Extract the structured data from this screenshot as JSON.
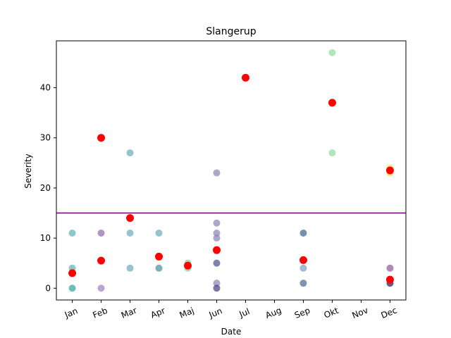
{
  "chart_data": {
    "type": "scatter",
    "title": "Slangerup",
    "xlabel": "Date",
    "ylabel": "Severity",
    "categories": [
      "Jan",
      "Feb",
      "Mar",
      "Apr",
      "Maj",
      "Jun",
      "Jul",
      "Aug",
      "Sep",
      "Okt",
      "Nov",
      "Dec"
    ],
    "ylim": [
      -2.35,
      49.35
    ],
    "yticks": [
      0,
      10,
      20,
      30,
      40
    ],
    "grid": false,
    "threshold": {
      "value": 15,
      "color": "#6a006a"
    },
    "series": [
      {
        "kind": "observations",
        "points": [
          {
            "x": "Jan",
            "y": 11,
            "color": "#5fb1b1"
          },
          {
            "x": "Jan",
            "y": 4,
            "color": "#5fb1b1"
          },
          {
            "x": "Jan",
            "y": 0,
            "color": "#2aa59a"
          },
          {
            "x": "Feb",
            "y": 11,
            "color": "#8b6aa6"
          },
          {
            "x": "Feb",
            "y": 0,
            "color": "#9d7fbc"
          },
          {
            "x": "Mar",
            "y": 27,
            "color": "#6aaab8"
          },
          {
            "x": "Mar",
            "y": 11,
            "color": "#6aaab8"
          },
          {
            "x": "Mar",
            "y": 4,
            "color": "#6aaab8"
          },
          {
            "x": "Apr",
            "y": 11,
            "color": "#6aaab8"
          },
          {
            "x": "Apr",
            "y": 4,
            "color": "#4a8f98"
          },
          {
            "x": "Maj",
            "y": 5,
            "color": "#7fcf8f"
          },
          {
            "x": "Maj",
            "y": 4,
            "color": "#7fcf8f"
          },
          {
            "x": "Jun",
            "y": 23,
            "color": "#8a82b8"
          },
          {
            "x": "Jun",
            "y": 13,
            "color": "#8a82b8"
          },
          {
            "x": "Jun",
            "y": 11,
            "color": "#8a82b8"
          },
          {
            "x": "Jun",
            "y": 10,
            "color": "#8a82b8"
          },
          {
            "x": "Jun",
            "y": 5,
            "color": "#4b4d8f"
          },
          {
            "x": "Jun",
            "y": 1,
            "color": "#8a82b8"
          },
          {
            "x": "Jun",
            "y": 0,
            "color": "#4b3d80"
          },
          {
            "x": "Sep",
            "y": 11,
            "color": "#3e5f8a"
          },
          {
            "x": "Sep",
            "y": 4,
            "color": "#7c9ac0"
          },
          {
            "x": "Sep",
            "y": 1,
            "color": "#4a6790"
          },
          {
            "x": "Okt",
            "y": 47,
            "color": "#8fdc9a"
          },
          {
            "x": "Okt",
            "y": 27,
            "color": "#8fdc9a"
          },
          {
            "x": "Dec",
            "y": 24,
            "color": "#f5e44a"
          },
          {
            "x": "Dec",
            "y": 23,
            "color": "#f5e44a"
          },
          {
            "x": "Dec",
            "y": 4,
            "color": "#8b5a98"
          },
          {
            "x": "Dec",
            "y": 1,
            "color": "#2d0f55"
          }
        ]
      },
      {
        "kind": "monthly-mean",
        "color": "#ff0000",
        "points": [
          {
            "x": "Jan",
            "y": 3
          },
          {
            "x": "Feb",
            "y": 30
          },
          {
            "x": "Feb",
            "y": 5.5
          },
          {
            "x": "Mar",
            "y": 14
          },
          {
            "x": "Apr",
            "y": 6.3
          },
          {
            "x": "Maj",
            "y": 4.5
          },
          {
            "x": "Jun",
            "y": 7.6
          },
          {
            "x": "Jul",
            "y": 42
          },
          {
            "x": "Sep",
            "y": 5.6
          },
          {
            "x": "Okt",
            "y": 37
          },
          {
            "x": "Dec",
            "y": 23.5
          },
          {
            "x": "Dec",
            "y": 1.7
          }
        ]
      }
    ]
  }
}
